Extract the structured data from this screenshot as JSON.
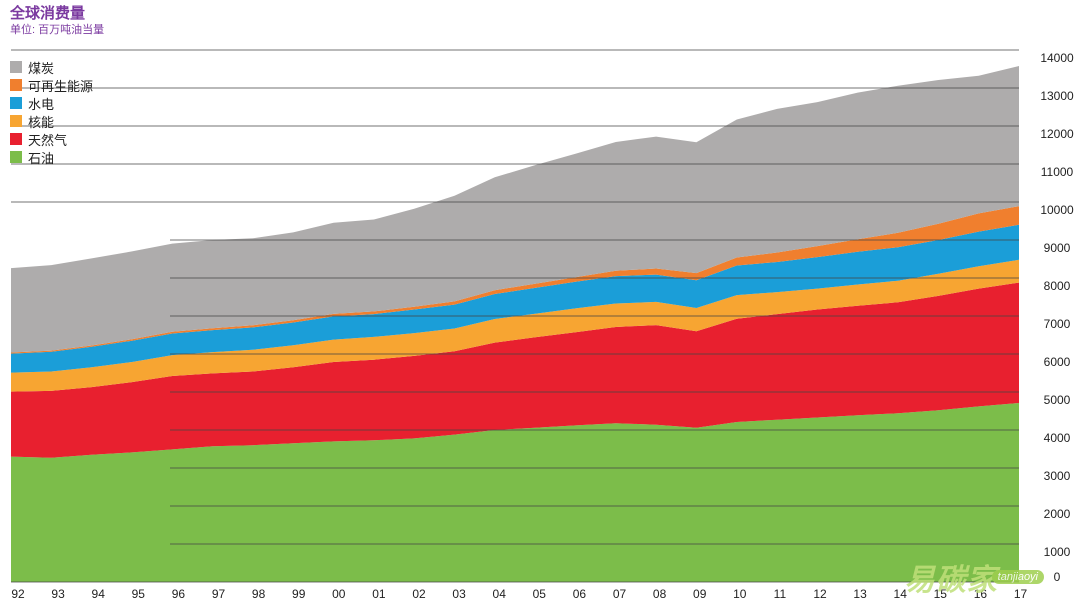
{
  "header": {
    "title": "全球消费量",
    "subtitle": "单位: 百万吨油当量"
  },
  "chart_data": {
    "type": "area",
    "stacked": true,
    "title": "全球消费量",
    "ylabel": "单位: 百万吨油当量",
    "ylim": [
      0,
      14000
    ],
    "y_ticks": [
      0,
      1000,
      2000,
      3000,
      4000,
      5000,
      6000,
      7000,
      8000,
      9000,
      10000,
      11000,
      12000,
      13000,
      14000
    ],
    "categories": [
      "92",
      "93",
      "94",
      "95",
      "96",
      "97",
      "98",
      "99",
      "00",
      "01",
      "02",
      "03",
      "04",
      "05",
      "06",
      "07",
      "08",
      "09",
      "10",
      "11",
      "12",
      "13",
      "14",
      "15",
      "16",
      "17"
    ],
    "legend_position": "top-left",
    "series": [
      {
        "name": "石油",
        "color": "#7cbd4a",
        "values": [
          3300,
          3270,
          3350,
          3410,
          3490,
          3570,
          3600,
          3650,
          3700,
          3730,
          3780,
          3880,
          4000,
          4060,
          4120,
          4180,
          4140,
          4060,
          4210,
          4270,
          4330,
          4390,
          4440,
          4520,
          4620,
          4710
        ]
      },
      {
        "name": "天然气",
        "color": "#e8202f",
        "values": [
          1710,
          1760,
          1780,
          1850,
          1930,
          1920,
          1940,
          2000,
          2090,
          2120,
          2170,
          2190,
          2300,
          2380,
          2450,
          2530,
          2620,
          2540,
          2720,
          2780,
          2840,
          2880,
          2920,
          3010,
          3100,
          3170
        ]
      },
      {
        "name": "核能",
        "color": "#f7a532",
        "values": [
          500,
          510,
          520,
          530,
          550,
          560,
          570,
          580,
          590,
          600,
          600,
          600,
          620,
          620,
          630,
          620,
          610,
          610,
          620,
          580,
          550,
          560,
          570,
          580,
          590,
          600
        ]
      },
      {
        "name": "水电",
        "color": "#1b9ed8",
        "values": [
          500,
          520,
          540,
          560,
          570,
          580,
          590,
          600,
          610,
          600,
          620,
          630,
          660,
          680,
          700,
          720,
          720,
          730,
          780,
          790,
          830,
          860,
          880,
          890,
          910,
          920
        ]
      },
      {
        "name": "可再生能源",
        "color": "#f07f2e",
        "values": [
          30,
          30,
          35,
          40,
          45,
          50,
          55,
          60,
          65,
          70,
          75,
          85,
          100,
          110,
          120,
          140,
          160,
          190,
          210,
          250,
          290,
          330,
          380,
          430,
          480,
          490
        ]
      },
      {
        "name": "煤炭",
        "color": "#aeacac",
        "values": [
          2220,
          2250,
          2290,
          2310,
          2320,
          2320,
          2290,
          2310,
          2400,
          2420,
          2580,
          2780,
          2970,
          3120,
          3250,
          3390,
          3470,
          3440,
          3630,
          3780,
          3790,
          3860,
          3870,
          3780,
          3620,
          3690
        ]
      }
    ]
  },
  "watermark": {
    "cn": "易碳家",
    "en": "tanjiaoyi"
  }
}
